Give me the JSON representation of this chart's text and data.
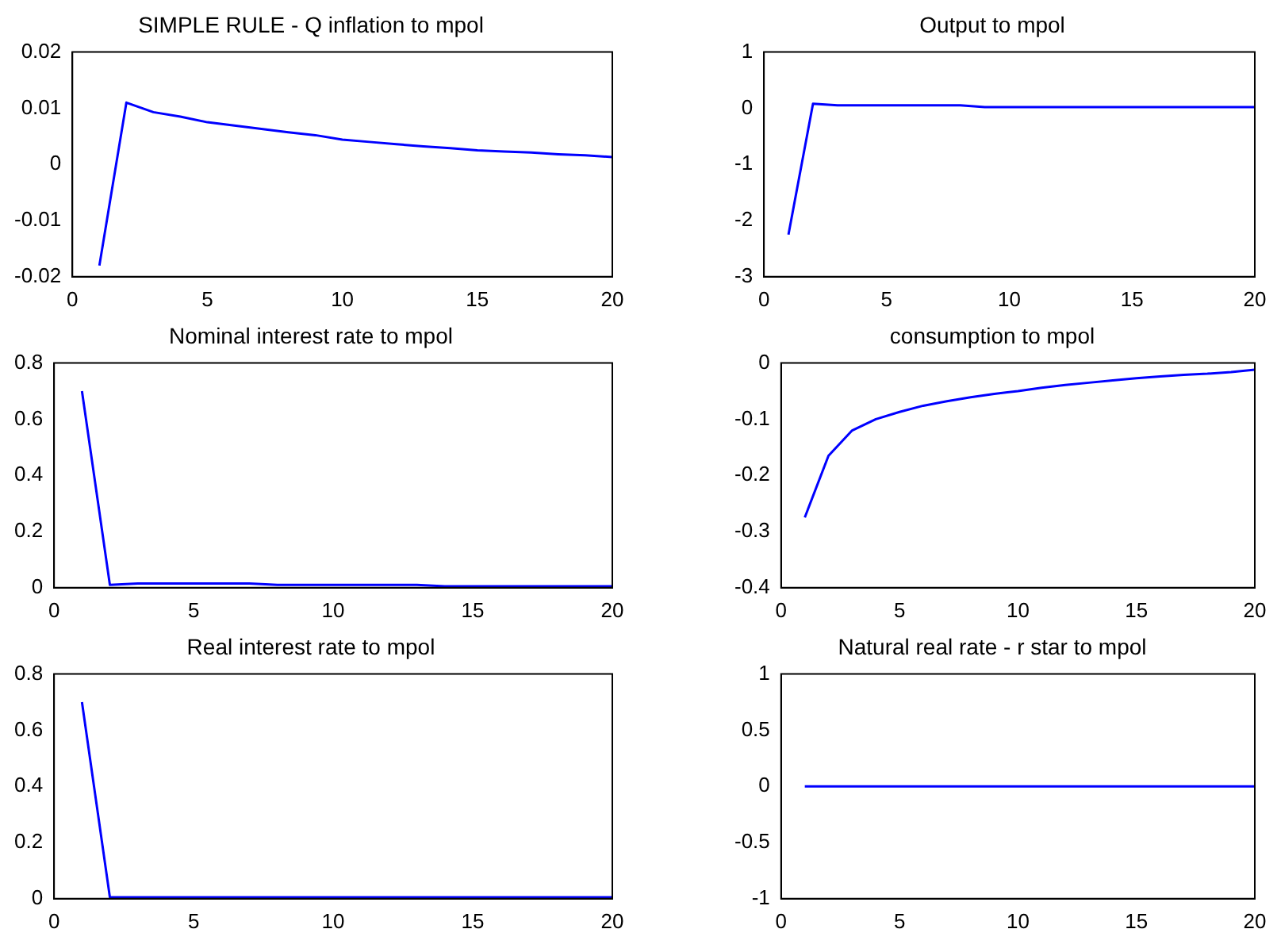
{
  "chart_data": [
    {
      "type": "line",
      "title": "SIMPLE RULE - Q inflation to mpol",
      "x": [
        1,
        2,
        3,
        4,
        5,
        6,
        7,
        8,
        9,
        10,
        11,
        12,
        13,
        14,
        15,
        16,
        17,
        18,
        19,
        20
      ],
      "xlim": [
        0,
        20
      ],
      "xticks": [
        0,
        5,
        10,
        15,
        20
      ],
      "ylim": [
        -0.02,
        0.02
      ],
      "yticks": [
        -0.02,
        -0.01,
        0,
        0.01,
        0.02
      ],
      "series": [
        {
          "color": "#0000ff",
          "values": [
            -0.018,
            0.011,
            0.0093,
            0.0085,
            0.0075,
            0.0069,
            0.0063,
            0.0057,
            0.0052,
            0.0044,
            0.004,
            0.0036,
            0.0032,
            0.0029,
            0.0025,
            0.0023,
            0.0021,
            0.0018,
            0.0016,
            0.0013
          ]
        }
      ]
    },
    {
      "type": "line",
      "title": "Output to mpol",
      "x": [
        1,
        2,
        3,
        4,
        5,
        6,
        7,
        8,
        9,
        10,
        11,
        12,
        13,
        14,
        15,
        16,
        17,
        18,
        19,
        20
      ],
      "xlim": [
        0,
        20
      ],
      "xticks": [
        0,
        5,
        10,
        15,
        20
      ],
      "ylim": [
        -3,
        1
      ],
      "yticks": [
        -3,
        -2,
        -1,
        0,
        1
      ],
      "series": [
        {
          "color": "#0000ff",
          "values": [
            -2.25,
            0.08,
            0.05,
            0.05,
            0.05,
            0.05,
            0.05,
            0.05,
            0.02,
            0.02,
            0.02,
            0.02,
            0.02,
            0.02,
            0.02,
            0.02,
            0.02,
            0.02,
            0.02,
            0.02
          ]
        }
      ]
    },
    {
      "type": "line",
      "title": "Nominal interest rate to mpol",
      "x": [
        1,
        2,
        3,
        4,
        5,
        6,
        7,
        8,
        9,
        10,
        11,
        12,
        13,
        14,
        15,
        16,
        17,
        18,
        19,
        20
      ],
      "xlim": [
        0,
        20
      ],
      "xticks": [
        0,
        5,
        10,
        15,
        20
      ],
      "ylim": [
        0,
        0.8
      ],
      "yticks": [
        0,
        0.2,
        0.4,
        0.6,
        0.8
      ],
      "series": [
        {
          "color": "#0000ff",
          "values": [
            0.7,
            0.01,
            0.015,
            0.015,
            0.015,
            0.015,
            0.015,
            0.01,
            0.01,
            0.01,
            0.01,
            0.01,
            0.01,
            0.005,
            0.005,
            0.005,
            0.005,
            0.005,
            0.005,
            0.005
          ]
        }
      ]
    },
    {
      "type": "line",
      "title": "consumption to mpol",
      "x": [
        1,
        2,
        3,
        4,
        5,
        6,
        7,
        8,
        9,
        10,
        11,
        12,
        13,
        14,
        15,
        16,
        17,
        18,
        19,
        20
      ],
      "xlim": [
        0,
        20
      ],
      "xticks": [
        0,
        5,
        10,
        15,
        20
      ],
      "ylim": [
        -0.4,
        0
      ],
      "yticks": [
        -0.4,
        -0.3,
        -0.2,
        -0.1,
        0
      ],
      "series": [
        {
          "color": "#0000ff",
          "values": [
            -0.275,
            -0.165,
            -0.12,
            -0.1,
            -0.087,
            -0.076,
            -0.068,
            -0.061,
            -0.055,
            -0.05,
            -0.044,
            -0.039,
            -0.035,
            -0.031,
            -0.027,
            -0.024,
            -0.021,
            -0.019,
            -0.016,
            -0.012
          ]
        }
      ]
    },
    {
      "type": "line",
      "title": "Real interest rate to mpol",
      "x": [
        1,
        2,
        3,
        4,
        5,
        6,
        7,
        8,
        9,
        10,
        11,
        12,
        13,
        14,
        15,
        16,
        17,
        18,
        19,
        20
      ],
      "xlim": [
        0,
        20
      ],
      "xticks": [
        0,
        5,
        10,
        15,
        20
      ],
      "ylim": [
        0,
        0.8
      ],
      "yticks": [
        0,
        0.2,
        0.4,
        0.6,
        0.8
      ],
      "series": [
        {
          "color": "#0000ff",
          "values": [
            0.7,
            0.005,
            0.005,
            0.005,
            0.005,
            0.005,
            0.005,
            0.005,
            0.005,
            0.005,
            0.005,
            0.005,
            0.005,
            0.005,
            0.005,
            0.005,
            0.005,
            0.005,
            0.005,
            0.005
          ]
        }
      ]
    },
    {
      "type": "line",
      "title": "Natural real rate - r star to mpol",
      "x": [
        1,
        2,
        3,
        4,
        5,
        6,
        7,
        8,
        9,
        10,
        11,
        12,
        13,
        14,
        15,
        16,
        17,
        18,
        19,
        20
      ],
      "xlim": [
        0,
        20
      ],
      "xticks": [
        0,
        5,
        10,
        15,
        20
      ],
      "ylim": [
        -1,
        1
      ],
      "yticks": [
        -1,
        -0.5,
        0,
        0.5,
        1
      ],
      "series": [
        {
          "color": "#0000ff",
          "values": [
            0,
            0,
            0,
            0,
            0,
            0,
            0,
            0,
            0,
            0,
            0,
            0,
            0,
            0,
            0,
            0,
            0,
            0,
            0,
            0
          ]
        }
      ]
    }
  ]
}
